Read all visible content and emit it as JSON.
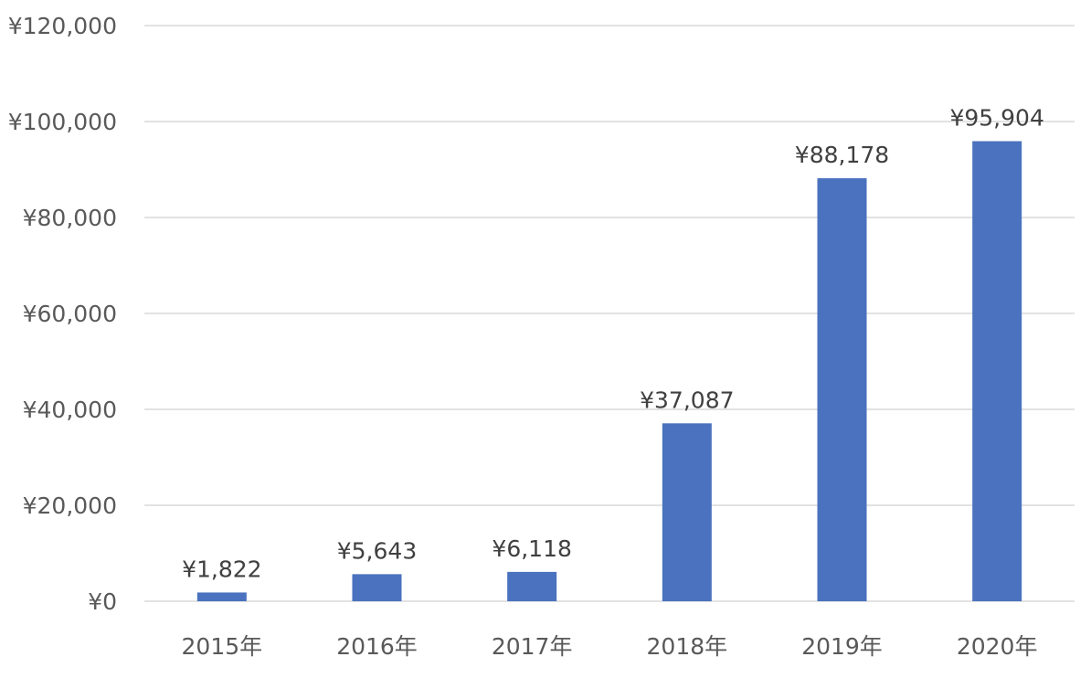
{
  "chart_data": {
    "type": "bar",
    "categories": [
      "2015年",
      "2016年",
      "2017年",
      "2018年",
      "2019年",
      "2020年"
    ],
    "values": [
      1822,
      5643,
      6118,
      37087,
      88178,
      95904
    ],
    "data_labels": [
      "¥1,822",
      "¥5,643",
      "¥6,118",
      "¥37,087",
      "¥88,178",
      "¥95,904"
    ],
    "title": "",
    "xlabel": "",
    "ylabel": "",
    "ylim": [
      0,
      120000
    ],
    "yticks": [
      0,
      20000,
      40000,
      60000,
      80000,
      100000,
      120000
    ],
    "ytick_labels": [
      "¥0",
      "¥20,000",
      "¥40,000",
      "¥60,000",
      "¥80,000",
      "¥100,000",
      "¥120,000"
    ],
    "grid": true,
    "legend": "none",
    "bar_color": "#4a72be"
  }
}
